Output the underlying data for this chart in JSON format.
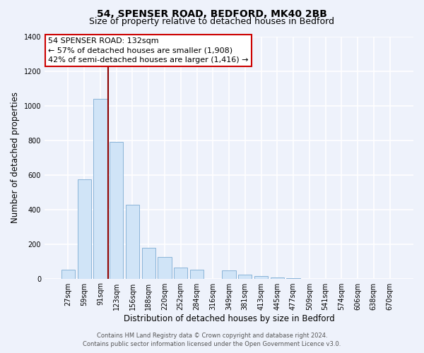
{
  "title": "54, SPENSER ROAD, BEDFORD, MK40 2BB",
  "subtitle": "Size of property relative to detached houses in Bedford",
  "xlabel": "Distribution of detached houses by size in Bedford",
  "ylabel": "Number of detached properties",
  "bar_labels": [
    "27sqm",
    "59sqm",
    "91sqm",
    "123sqm",
    "156sqm",
    "188sqm",
    "220sqm",
    "252sqm",
    "284sqm",
    "316sqm",
    "349sqm",
    "381sqm",
    "413sqm",
    "445sqm",
    "477sqm",
    "509sqm",
    "541sqm",
    "574sqm",
    "606sqm",
    "638sqm",
    "670sqm"
  ],
  "bar_values": [
    50,
    575,
    1040,
    790,
    425,
    178,
    123,
    63,
    52,
    0,
    48,
    22,
    15,
    5,
    2,
    0,
    0,
    0,
    0,
    0,
    0
  ],
  "bar_color": "#d0e4f7",
  "bar_edge_color": "#8ab4d8",
  "vline_color": "#8b0000",
  "ylim": [
    0,
    1400
  ],
  "yticks": [
    0,
    200,
    400,
    600,
    800,
    1000,
    1200,
    1400
  ],
  "annotation_title": "54 SPENSER ROAD: 132sqm",
  "annotation_line1": "← 57% of detached houses are smaller (1,908)",
  "annotation_line2": "42% of semi-detached houses are larger (1,416) →",
  "annotation_box_color": "#ffffff",
  "annotation_box_edge": "#cc0000",
  "footer_line1": "Contains HM Land Registry data © Crown copyright and database right 2024.",
  "footer_line2": "Contains public sector information licensed under the Open Government Licence v3.0.",
  "background_color": "#eef2fb",
  "plot_bg_color": "#eef2fb",
  "grid_color": "#ffffff",
  "title_fontsize": 10,
  "subtitle_fontsize": 9,
  "axis_label_fontsize": 8.5,
  "tick_fontsize": 7,
  "footer_fontsize": 6,
  "annotation_fontsize": 8
}
